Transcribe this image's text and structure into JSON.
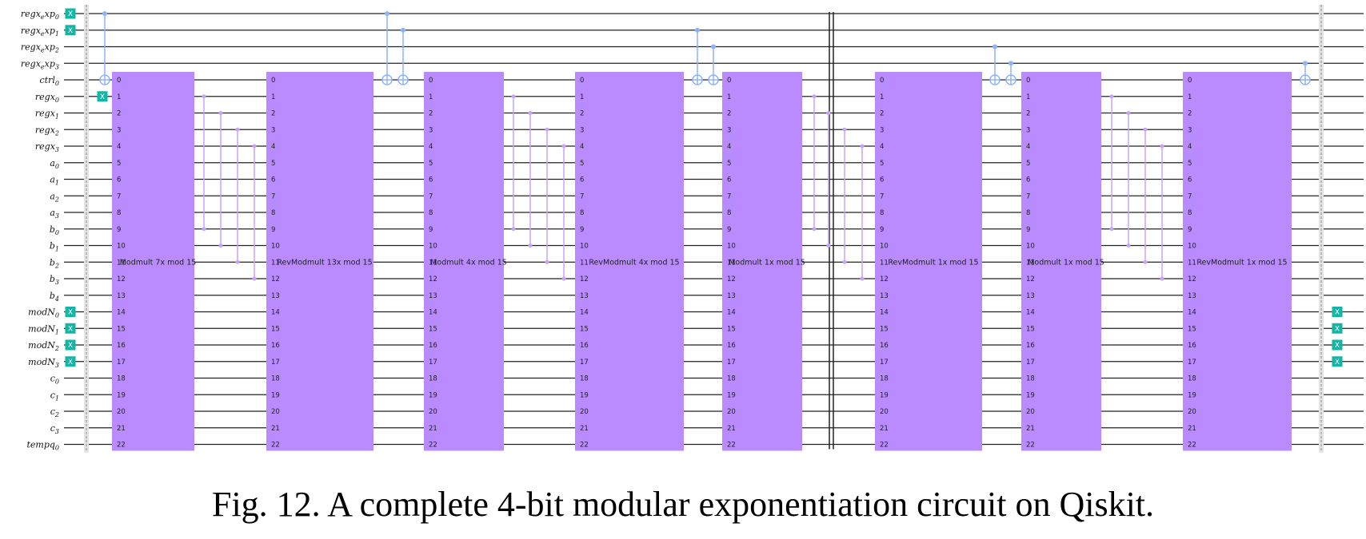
{
  "caption": "Fig. 12. A complete 4-bit modular exponentiation circuit on Qiskit.",
  "colors": {
    "wire": "#222222",
    "block": "#b98bff",
    "control": "#8fb3ff",
    "swap": "#c8a2ff",
    "x_gate": "#13b5a6",
    "barrier": "#b8b8b8"
  },
  "qubit_labels": [
    {
      "base": "regx",
      "sub": "e",
      "rest": "xp",
      "idx": "0"
    },
    {
      "base": "regx",
      "sub": "e",
      "rest": "xp",
      "idx": "1"
    },
    {
      "base": "regx",
      "sub": "e",
      "rest": "xp",
      "idx": "2"
    },
    {
      "base": "regx",
      "sub": "e",
      "rest": "xp",
      "idx": "3"
    },
    {
      "base": "ctrl",
      "idx": "0"
    },
    {
      "base": "regx",
      "idx": "0"
    },
    {
      "base": "regx",
      "idx": "1"
    },
    {
      "base": "regx",
      "idx": "2"
    },
    {
      "base": "regx",
      "idx": "3"
    },
    {
      "base": "a",
      "idx": "0"
    },
    {
      "base": "a",
      "idx": "1"
    },
    {
      "base": "a",
      "idx": "2"
    },
    {
      "base": "a",
      "idx": "3"
    },
    {
      "base": "b",
      "idx": "0"
    },
    {
      "base": "b",
      "idx": "1"
    },
    {
      "base": "b",
      "idx": "2"
    },
    {
      "base": "b",
      "idx": "3"
    },
    {
      "base": "b",
      "idx": "4"
    },
    {
      "base": "modN",
      "idx": "0"
    },
    {
      "base": "modN",
      "idx": "1"
    },
    {
      "base": "modN",
      "idx": "2"
    },
    {
      "base": "modN",
      "idx": "3"
    },
    {
      "base": "c",
      "idx": "0"
    },
    {
      "base": "c",
      "idx": "1"
    },
    {
      "base": "c",
      "idx": "2"
    },
    {
      "base": "c",
      "idx": "3"
    },
    {
      "base": "tempq",
      "idx": "0"
    }
  ],
  "x_gate_label": "X",
  "pin_labels": [
    "0",
    "1",
    "2",
    "3",
    "4",
    "5",
    "6",
    "7",
    "8",
    "9",
    "10",
    "11",
    "12",
    "13",
    "14",
    "15",
    "16",
    "17",
    "18",
    "19",
    "20",
    "21",
    "22"
  ],
  "gates": [
    {
      "label": "Modmult  7x mod 15"
    },
    {
      "label": "RevModmult  13x mod 15"
    },
    {
      "label": "Modmult  4x mod 15"
    },
    {
      "label": "RevModmult  4x mod 15"
    },
    {
      "label": "Modmult  1x mod 15"
    },
    {
      "label": "RevModmult  1x mod 15"
    },
    {
      "label": "Modmult  1x mod 15"
    },
    {
      "label": "RevModmult  1x mod 15"
    }
  ]
}
